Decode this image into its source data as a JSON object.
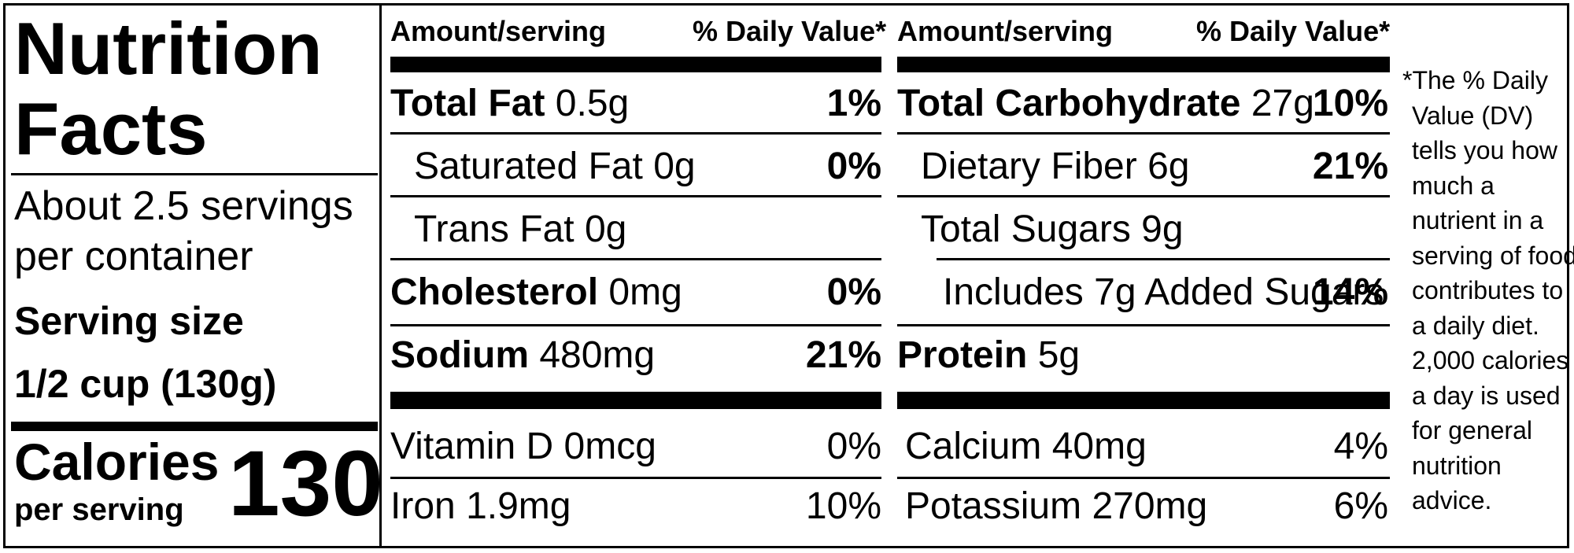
{
  "title_line1": "Nutrition",
  "title_line2": "Facts",
  "servings_line1": "About 2.5 servings",
  "servings_line2": "per container",
  "serving_size_label": "Serving size",
  "serving_size_value": "1/2 cup (130g)",
  "calories_label": "Calories",
  "calories_sub": "per serving",
  "calories_value": "130",
  "columns": [
    {
      "header_amount": "Amount/serving",
      "header_dv": "% Daily Value*",
      "rows": [
        {
          "name": "Total Fat",
          "amount": "0.5g",
          "dv": "1%"
        },
        {
          "name": "Saturated Fat",
          "amount": "0g",
          "dv": "0%"
        },
        {
          "name": "Trans Fat",
          "amount": "0g",
          "dv": ""
        },
        {
          "name": "Cholesterol",
          "amount": "0mg",
          "dv": "0%"
        },
        {
          "name": "Sodium",
          "amount": "480mg",
          "dv": "21%"
        }
      ],
      "vitamins": [
        {
          "name": "Vitamin D",
          "amount": "0mcg",
          "dv": "0%"
        },
        {
          "name": "Iron",
          "amount": "1.9mg",
          "dv": "10%"
        }
      ]
    },
    {
      "header_amount": "Amount/serving",
      "header_dv": "% Daily Value*",
      "rows": [
        {
          "name": "Total Carbohydrate",
          "amount": "27g",
          "dv": "10%"
        },
        {
          "name": "Dietary Fiber",
          "amount": "6g",
          "dv": "21%"
        },
        {
          "name": "Total Sugars",
          "amount": "9g",
          "dv": ""
        },
        {
          "name": "Includes 7g Added Sugars",
          "amount": "",
          "dv": "14%"
        },
        {
          "name": "Protein",
          "amount": "5g",
          "dv": ""
        }
      ],
      "vitamins": [
        {
          "name": "Calcium",
          "amount": "40mg",
          "dv": "4%"
        },
        {
          "name": "Potassium",
          "amount": "270mg",
          "dv": "6%"
        }
      ]
    }
  ],
  "footnote_lines": [
    "*The % Daily",
    "Value (DV)",
    "tells you how",
    "much a",
    "nutrient in a",
    "serving of food",
    "contributes to",
    "a daily diet.",
    "2,000 calories",
    "a day is used",
    "for general",
    "nutrition",
    "advice."
  ]
}
